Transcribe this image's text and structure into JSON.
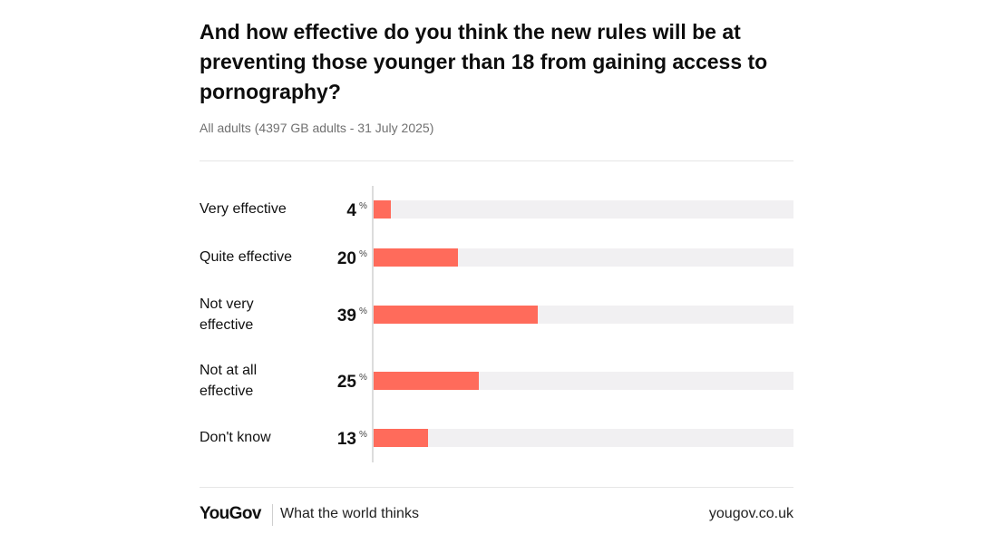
{
  "chart_data": {
    "type": "bar",
    "orientation": "horizontal",
    "title": "And how effective do you think the new rules will be at preventing those younger than 18 from gaining access to pornography?",
    "subtitle": "All adults (4397 GB adults - 31 July 2025)",
    "categories": [
      "Very effective",
      "Quite effective",
      "Not very effective",
      "Not at all effective",
      "Don't know"
    ],
    "values": [
      4,
      20,
      39,
      25,
      13
    ],
    "unit": "%",
    "xlim": [
      0,
      100
    ],
    "bar_color": "#ff6b5b",
    "track_color": "#f1f0f2"
  },
  "footer": {
    "brand": "YouGov",
    "tagline": "What the world thinks",
    "site": "yougov.co.uk"
  }
}
